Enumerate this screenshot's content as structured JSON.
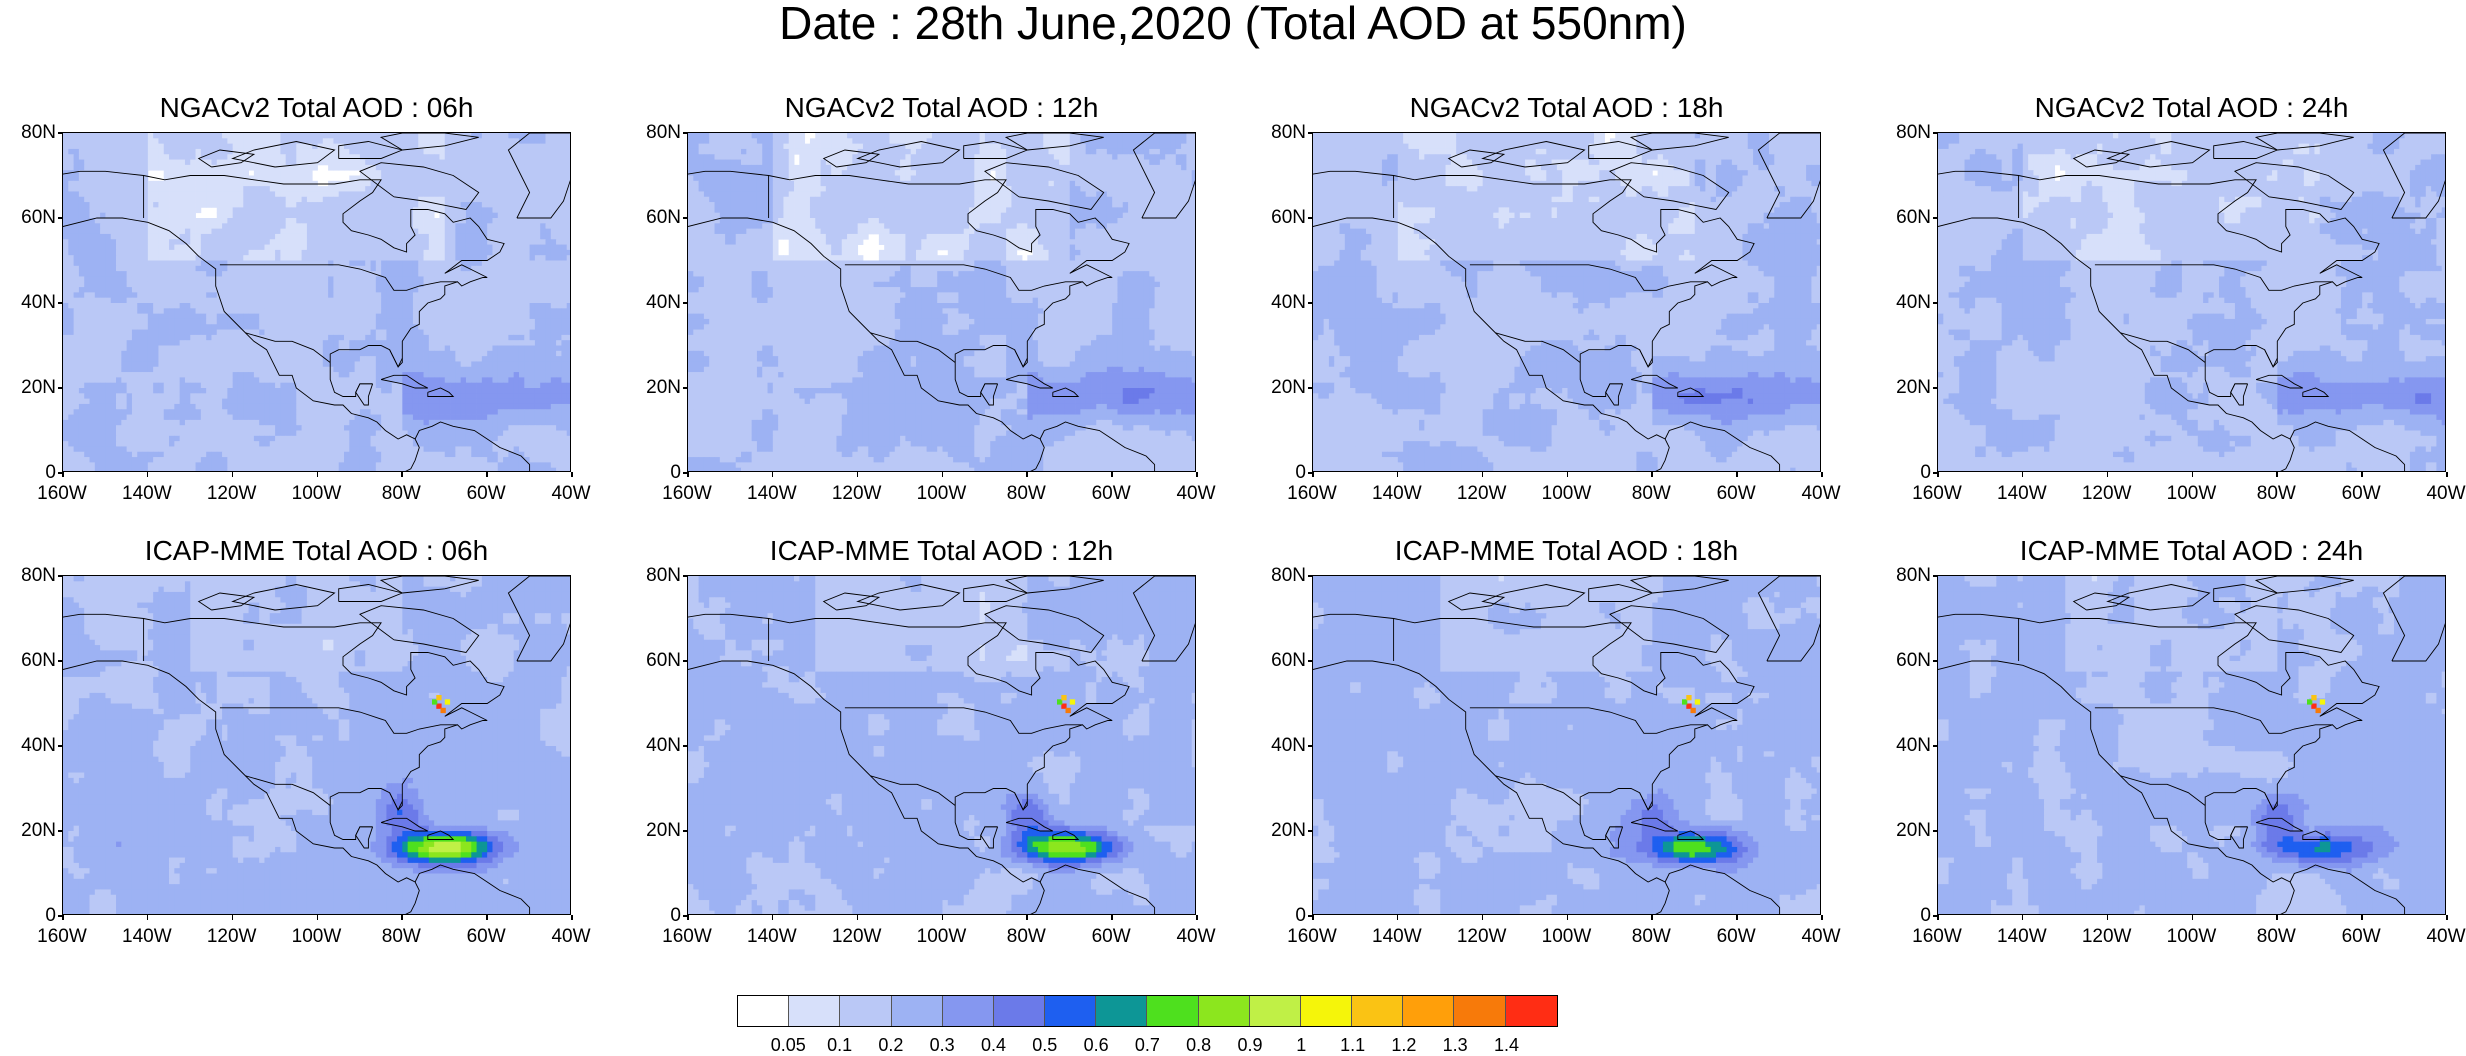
{
  "title": "Date : 28th June,2020 (Total AOD at 550nm)",
  "lat_labels": [
    "80N",
    "60N",
    "40N",
    "20N",
    "0"
  ],
  "lon_labels": [
    "160W",
    "140W",
    "120W",
    "100W",
    "80W",
    "60W",
    "40W"
  ],
  "panels": [
    {
      "title": "NGACv2 Total AOD : 06h",
      "plume": 0.0,
      "hotspot": 0
    },
    {
      "title": "NGACv2 Total AOD : 12h",
      "plume": 0.0,
      "hotspot": 0
    },
    {
      "title": "NGACv2 Total AOD : 18h",
      "plume": 0.0,
      "hotspot": 0
    },
    {
      "title": "NGACv2 Total AOD : 24h",
      "plume": 0.0,
      "hotspot": 0
    },
    {
      "title": "ICAP-MME Total AOD : 06h",
      "plume": 1.0,
      "hotspot": 1
    },
    {
      "title": "ICAP-MME Total AOD : 12h",
      "plume": 0.85,
      "hotspot": 1
    },
    {
      "title": "ICAP-MME Total AOD : 18h",
      "plume": 0.7,
      "hotspot": 1
    },
    {
      "title": "ICAP-MME Total AOD : 24h",
      "plume": 0.55,
      "hotspot": 1
    }
  ],
  "colorbar": {
    "colors": [
      "#ffffff",
      "#d7e0fa",
      "#bac8f6",
      "#9db2f3",
      "#8597f0",
      "#6b7ae9",
      "#1e5ff0",
      "#0d9696",
      "#4ee01e",
      "#8ce61e",
      "#c0f046",
      "#f5f50a",
      "#fac314",
      "#ff9f0a",
      "#f77a0a",
      "#ff2d14"
    ],
    "labels": [
      "0.05",
      "0.1",
      "0.2",
      "0.3",
      "0.4",
      "0.5",
      "0.6",
      "0.7",
      "0.8",
      "0.9",
      "1",
      "1.1",
      "1.2",
      "1.3",
      "1.4"
    ]
  }
}
